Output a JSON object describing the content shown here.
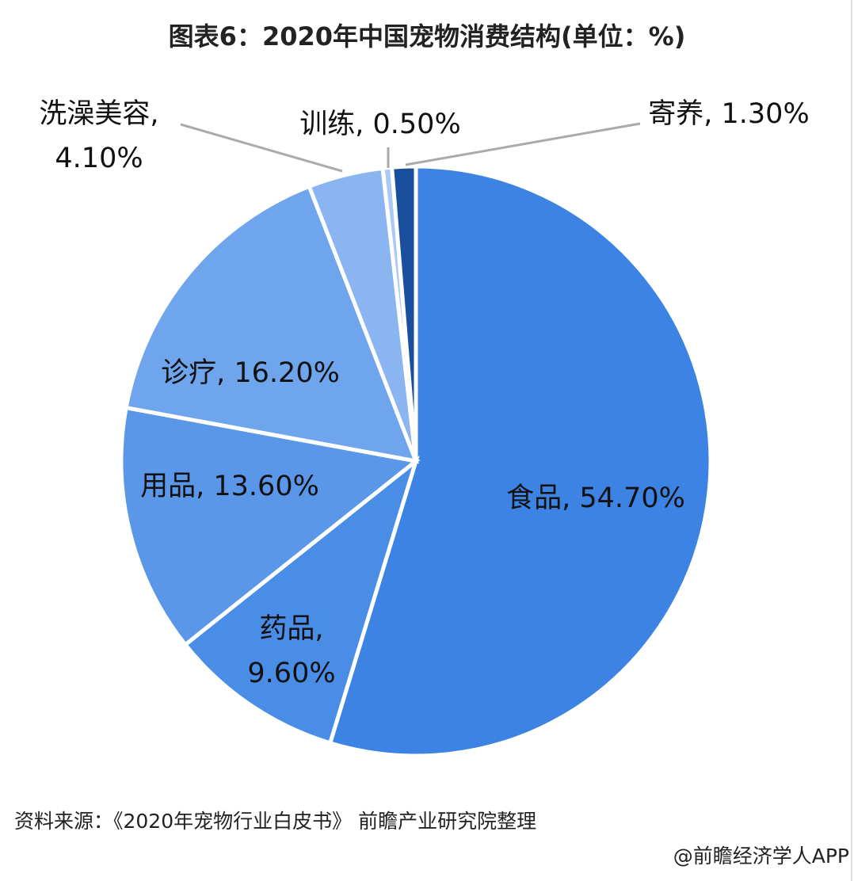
{
  "chart_data": {
    "type": "pie",
    "title": "图表6：2020年中国宠物消费结构(单位：%)",
    "values": [
      54.7,
      9.6,
      13.6,
      16.2,
      4.1,
      0.5,
      1.3
    ],
    "value_labels": [
      "食品, 54.70%",
      "药品,\n9.60%",
      "用品, 13.60%",
      "诊疗, 16.20%",
      "洗澡美容,\n4.10%",
      "训练, 0.50%",
      "寄养, 1.30%"
    ],
    "colors": [
      "#3d83e3",
      "#4a8de6",
      "#5a97e9",
      "#6ea5ec",
      "#8ab5f0",
      "#aac9f5",
      "#1a4f9e"
    ],
    "source": "资料来源：《2020年宠物行业白皮书》 前瞻产业研究院整理",
    "credit": "@前瞻经济学人APP"
  }
}
